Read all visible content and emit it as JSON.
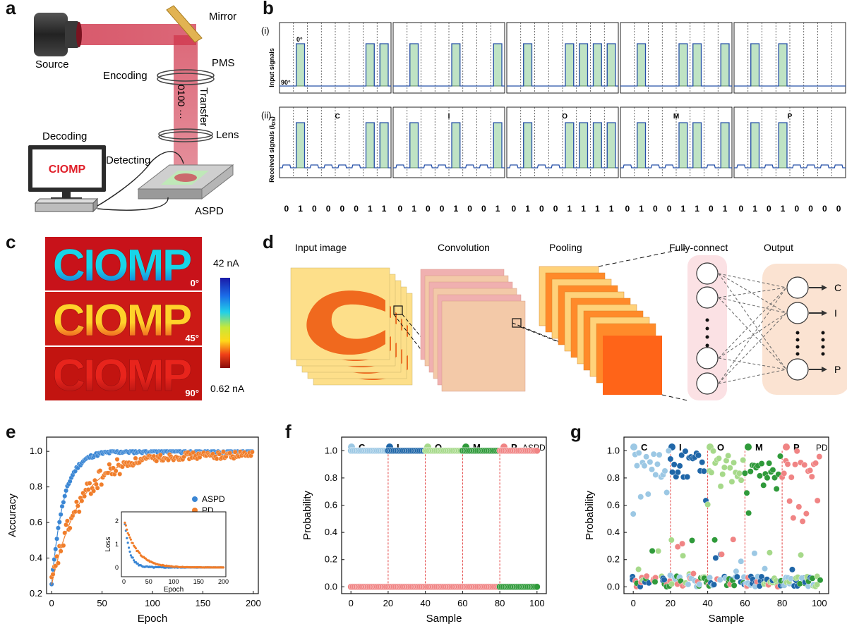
{
  "panels": {
    "a": "a",
    "b": "b",
    "c": "c",
    "d": "d",
    "e": "e",
    "f": "f",
    "g": "g"
  },
  "a": {
    "source": "Source",
    "mirror": "Mirror",
    "pms": "PMS",
    "encoding": "Encoding",
    "transfer": "Transfer",
    "bits": "0100 ···",
    "lens": "Lens",
    "decoding": "Decoding",
    "detecting": "Detecting",
    "aspd": "ASPD",
    "screen": "CIOMP",
    "beam_color": "#c8354a",
    "screen_text_color": "#e0202a"
  },
  "b": {
    "row_i": "(i)",
    "row_ii": "(ii)",
    "ylabel_i": "Input signals",
    "ylabel_ii": "Received signals (I",
    "ylabel_ii_sub": "DS",
    "ylabel_ii_end": ")",
    "deg0": "0°",
    "deg90": "90°",
    "letters": [
      "C",
      "I",
      "O",
      "M",
      "P"
    ],
    "bits": [
      [
        0,
        1,
        0,
        0,
        0,
        0,
        1,
        1
      ],
      [
        0,
        1,
        0,
        0,
        1,
        0,
        0,
        1
      ],
      [
        0,
        1,
        0,
        0,
        1,
        1,
        1,
        1
      ],
      [
        0,
        1,
        0,
        0,
        1,
        1,
        0,
        1
      ],
      [
        0,
        1,
        0,
        1,
        0,
        0,
        0,
        0
      ]
    ],
    "pulse_fill": "#bfe3c4",
    "line_color": "#2650a8"
  },
  "c": {
    "text": "CIOMP",
    "angles": [
      "0°",
      "45°",
      "90°"
    ],
    "cbar_max": "42 nA",
    "cbar_min": "0.62 nA"
  },
  "d": {
    "input": "Input image",
    "conv": "Convolution",
    "pool": "Pooling",
    "fc": "Fully-connect",
    "output": "Output",
    "outs": [
      "C",
      "I",
      "P"
    ]
  },
  "chart_data": [
    {
      "id": "e",
      "type": "scatter",
      "xlabel": "Epoch",
      "ylabel": "Accuracy",
      "xlim": [
        -5,
        205
      ],
      "ylim": [
        0.2,
        1.08
      ],
      "xticks": [
        "0",
        "50",
        "100",
        "150",
        "200"
      ],
      "yticks": [
        "0.2",
        "0.4",
        "0.6",
        "0.8",
        "1.0"
      ],
      "series": [
        {
          "name": "ASPD",
          "color": "#3a86d4",
          "tau": 12,
          "start": 0.25,
          "end": 1.0
        },
        {
          "name": "PD",
          "color": "#f07d2a",
          "tau": 28,
          "start": 0.25,
          "end": 0.98
        }
      ],
      "inset": {
        "xlabel": "Epoch",
        "ylabel": "Loss",
        "xticks": [
          "0",
          "50",
          "100",
          "150",
          "200"
        ],
        "yticks": [
          "0",
          "1",
          "2"
        ],
        "series": [
          {
            "name": "ASPD",
            "start": 2.3,
            "tau": 10
          },
          {
            "name": "PD",
            "start": 2.1,
            "tau": 25
          }
        ]
      }
    },
    {
      "id": "f",
      "type": "scatter",
      "xlabel": "Sample",
      "ylabel": "Probability",
      "xlim": [
        -5,
        105
      ],
      "ylim": [
        -0.05,
        1.1
      ],
      "xticks": [
        "0",
        "20",
        "40",
        "60",
        "80",
        "100"
      ],
      "yticks": [
        "0.0",
        "0.2",
        "0.4",
        "0.6",
        "0.8",
        "1.0"
      ],
      "legend": [
        "C",
        "I",
        "O",
        "M",
        "P"
      ],
      "legend_title": "ASPD",
      "class_colors": [
        "#9cc8e4",
        "#1f66a8",
        "#a6d98a",
        "#2f9a3a",
        "#f08484"
      ],
      "boundaries": [
        20,
        40,
        60,
        80
      ]
    },
    {
      "id": "g",
      "type": "scatter",
      "xlabel": "Sample",
      "ylabel": "Probability",
      "xlim": [
        -5,
        105
      ],
      "ylim": [
        -0.05,
        1.1
      ],
      "xticks": [
        "0",
        "20",
        "40",
        "60",
        "80",
        "100"
      ],
      "yticks": [
        "0.0",
        "0.2",
        "0.4",
        "0.6",
        "0.8",
        "1.0"
      ],
      "legend": [
        "C",
        "I",
        "O",
        "M",
        "P"
      ],
      "legend_title": "PD",
      "class_colors": [
        "#9cc8e4",
        "#1f66a8",
        "#a6d98a",
        "#2f9a3a",
        "#f08484"
      ],
      "boundaries": [
        20,
        40,
        60,
        80
      ]
    }
  ]
}
